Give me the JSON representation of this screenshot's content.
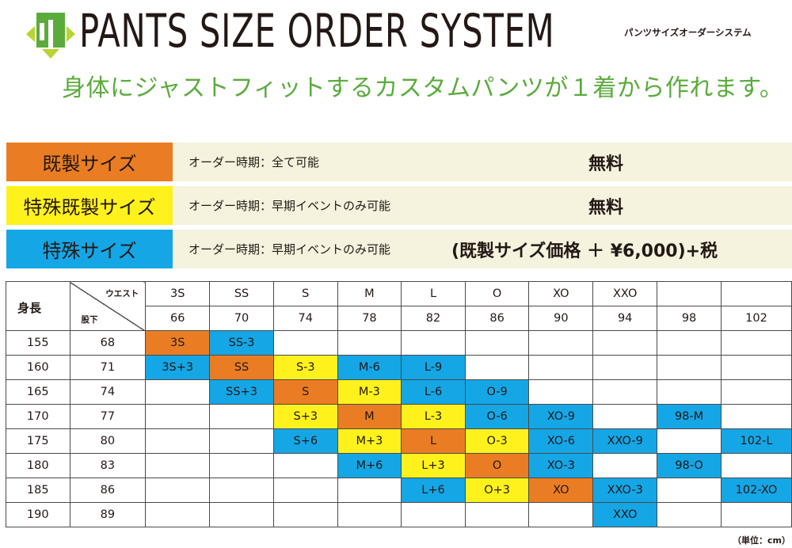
{
  "header": {
    "title": "PANTS SIZE ORDER SYSTEM",
    "subtitle_small": "パンツサイズオーダーシステム",
    "tagline": "身体にジャストフィットするカスタムパンツが１着から作れます。"
  },
  "colors": {
    "orange": "#ea7d23",
    "yellow": "#fff21c",
    "blue": "#15a6e6",
    "green": "#5aab3c",
    "cream": "#f5f3de"
  },
  "size_types": [
    {
      "label": "既製サイズ",
      "period": "オーダー時期：全て可能",
      "price": "無料",
      "color": "orange"
    },
    {
      "label": "特殊既製サイズ",
      "period": "オーダー時期：早期イベントのみ可能",
      "price": "無料",
      "color": "yellow"
    },
    {
      "label": "特殊サイズ",
      "period": "オーダー時期：早期イベントのみ可能",
      "price": "(既製サイズ価格 ＋ ¥6,000)+税",
      "color": "blue"
    }
  ],
  "table": {
    "height_label": "身長",
    "waist_label": "ウエスト",
    "inseam_label": "股下",
    "size_names": [
      "3S",
      "SS",
      "S",
      "M",
      "L",
      "O",
      "XO",
      "XXO",
      "",
      ""
    ],
    "waists": [
      "66",
      "70",
      "74",
      "78",
      "82",
      "86",
      "90",
      "94",
      "98",
      "102"
    ],
    "rows": [
      {
        "height": "155",
        "inseam": "68",
        "cells": [
          [
            "3S",
            "orange"
          ],
          [
            "SS-3",
            "blue"
          ],
          [
            "",
            ""
          ],
          [
            "",
            ""
          ],
          [
            "",
            ""
          ],
          [
            "",
            ""
          ],
          [
            "",
            ""
          ],
          [
            "",
            ""
          ],
          [
            "",
            ""
          ],
          [
            "",
            ""
          ]
        ]
      },
      {
        "height": "160",
        "inseam": "71",
        "cells": [
          [
            "3S+3",
            "blue"
          ],
          [
            "SS",
            "orange"
          ],
          [
            "S-3",
            "yellow"
          ],
          [
            "M-6",
            "blue"
          ],
          [
            "L-9",
            "blue"
          ],
          [
            "",
            ""
          ],
          [
            "",
            ""
          ],
          [
            "",
            ""
          ],
          [
            "",
            ""
          ],
          [
            "",
            ""
          ]
        ]
      },
      {
        "height": "165",
        "inseam": "74",
        "cells": [
          [
            "",
            ""
          ],
          [
            "SS+3",
            "blue"
          ],
          [
            "S",
            "orange"
          ],
          [
            "M-3",
            "yellow"
          ],
          [
            "L-6",
            "blue"
          ],
          [
            "O-9",
            "blue"
          ],
          [
            "",
            ""
          ],
          [
            "",
            ""
          ],
          [
            "",
            ""
          ],
          [
            "",
            ""
          ]
        ]
      },
      {
        "height": "170",
        "inseam": "77",
        "cells": [
          [
            "",
            ""
          ],
          [
            "",
            ""
          ],
          [
            "S+3",
            "yellow"
          ],
          [
            "M",
            "orange"
          ],
          [
            "L-3",
            "yellow"
          ],
          [
            "O-6",
            "blue"
          ],
          [
            "XO-9",
            "blue"
          ],
          [
            "",
            ""
          ],
          [
            "98-M",
            "blue"
          ],
          [
            "",
            ""
          ]
        ]
      },
      {
        "height": "175",
        "inseam": "80",
        "cells": [
          [
            "",
            ""
          ],
          [
            "",
            ""
          ],
          [
            "S+6",
            "blue"
          ],
          [
            "M+3",
            "yellow"
          ],
          [
            "L",
            "orange"
          ],
          [
            "O-3",
            "yellow"
          ],
          [
            "XO-6",
            "blue"
          ],
          [
            "XXO-9",
            "blue"
          ],
          [
            "",
            ""
          ],
          [
            "102-L",
            "blue"
          ]
        ]
      },
      {
        "height": "180",
        "inseam": "83",
        "cells": [
          [
            "",
            ""
          ],
          [
            "",
            ""
          ],
          [
            "",
            ""
          ],
          [
            "M+6",
            "blue"
          ],
          [
            "L+3",
            "yellow"
          ],
          [
            "O",
            "orange"
          ],
          [
            "XO-3",
            "blue"
          ],
          [
            "",
            ""
          ],
          [
            "98-O",
            "blue"
          ],
          [
            "",
            ""
          ]
        ]
      },
      {
        "height": "185",
        "inseam": "86",
        "cells": [
          [
            "",
            ""
          ],
          [
            "",
            ""
          ],
          [
            "",
            ""
          ],
          [
            "",
            ""
          ],
          [
            "L+6",
            "blue"
          ],
          [
            "O+3",
            "yellow"
          ],
          [
            "XO",
            "orange"
          ],
          [
            "XXO-3",
            "blue"
          ],
          [
            "",
            ""
          ],
          [
            "102-XO",
            "blue"
          ]
        ]
      },
      {
        "height": "190",
        "inseam": "89",
        "cells": [
          [
            "",
            ""
          ],
          [
            "",
            ""
          ],
          [
            "",
            ""
          ],
          [
            "",
            ""
          ],
          [
            "",
            ""
          ],
          [
            "",
            ""
          ],
          [
            "",
            ""
          ],
          [
            "XXO",
            "blue"
          ],
          [
            "",
            ""
          ],
          [
            "",
            ""
          ]
        ]
      }
    ]
  },
  "unit_note": "（単位：cm）"
}
